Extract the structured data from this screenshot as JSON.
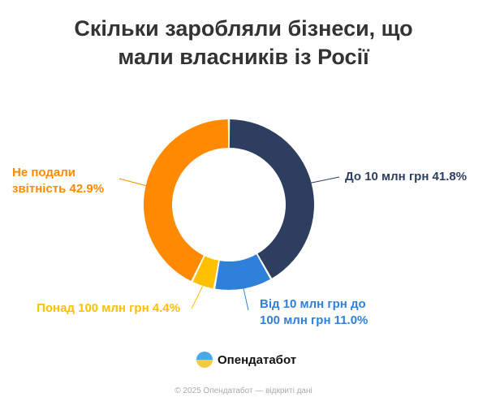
{
  "title_lines": [
    "Скільки заробляли бізнеси, що",
    "мали власників із Росії"
  ],
  "chart_data": {
    "type": "pie",
    "donut": true,
    "categories": [
      "До 10 млн грн",
      "Від 10 млн грн до 100 млн грн",
      "Понад 100 млн грн",
      "Не подали звітність"
    ],
    "values": [
      41.8,
      11.0,
      4.4,
      42.9
    ],
    "colors": [
      "#2d3e5e",
      "#2f80d9",
      "#ffc000",
      "#ff8a00"
    ],
    "labels": [
      {
        "lines": [
          "До 10 млн грн 41.8%"
        ]
      },
      {
        "lines": [
          "Від 10 млн грн до",
          "100 млн грн 11.0%"
        ]
      },
      {
        "lines": [
          "Понад 100 млн грн 4.4%"
        ]
      },
      {
        "lines": [
          "Не подали",
          "звітність 42.9%"
        ]
      }
    ]
  },
  "brand": "Опендатабот",
  "footer": "© 2025 Опендатабот — відкриті дані"
}
